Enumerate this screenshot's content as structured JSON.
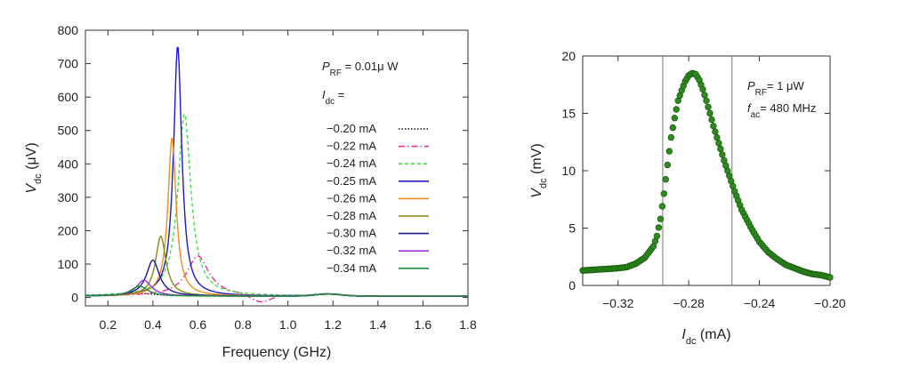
{
  "chart_data": [
    {
      "type": "line",
      "xlabel": "Frequency (GHz)",
      "ylabel_main": "V",
      "ylabel_sub": "dc",
      "ylabel_unit": " (μV)",
      "xlim": [
        0.1,
        1.8
      ],
      "ylim": [
        -25,
        800
      ],
      "xticks": [
        0.2,
        0.4,
        0.6,
        0.8,
        1.0,
        1.2,
        1.4,
        1.6,
        1.8
      ],
      "xtick_labels": [
        "0.2",
        "0.4",
        "0.6",
        "0.8",
        "1.0",
        "1.2",
        "1.4",
        "1.6",
        "1.8"
      ],
      "yticks": [
        0,
        100,
        200,
        300,
        400,
        500,
        600,
        700,
        800
      ],
      "ytick_labels": [
        "0",
        "100",
        "200",
        "300",
        "400",
        "500",
        "600",
        "700",
        "800"
      ],
      "annotation": {
        "main": "P",
        "sub": "RF",
        "rest": " = 0.01μ W"
      },
      "legend_title": {
        "main": "I",
        "sub": "dc",
        "rest": " ="
      },
      "legend_placement": "right",
      "series": [
        {
          "name": "−0.20 mA",
          "color": "#111111",
          "dash": "1.5,2",
          "x0": 0.35,
          "amp": 8,
          "w": 0.08,
          "neg": 0
        },
        {
          "name": "−0.22 mA",
          "color": "#e0358a",
          "dash": "7,3,1.5,3",
          "x0": 0.6,
          "amp": 120,
          "w": 0.06,
          "neg": -22
        },
        {
          "name": "−0.24 mA",
          "color": "#3fe03f",
          "dash": "4,3",
          "x0": 0.54,
          "amp": 545,
          "w": 0.035,
          "neg": 0
        },
        {
          "name": "−0.25 mA",
          "color": "#1c1ccc",
          "dash": "",
          "x0": 0.51,
          "amp": 750,
          "w": 0.022,
          "neg": 0
        },
        {
          "name": "−0.26 mA",
          "color": "#f28c1e",
          "dash": "",
          "x0": 0.485,
          "amp": 475,
          "w": 0.022,
          "neg": 0
        },
        {
          "name": "−0.28 mA",
          "color": "#8a8a14",
          "dash": "",
          "x0": 0.435,
          "amp": 180,
          "w": 0.028,
          "neg": 0
        },
        {
          "name": "−0.30 mA",
          "color": "#1b1b8c",
          "dash": "",
          "x0": 0.4,
          "amp": 108,
          "w": 0.035,
          "neg": 0
        },
        {
          "name": "−0.32 mA",
          "color": "#9b30e6",
          "dash": "",
          "x0": 0.36,
          "amp": 48,
          "w": 0.04,
          "neg": 0
        },
        {
          "name": "−0.34 mA",
          "color": "#1e8c3c",
          "dash": "",
          "x0": 0.34,
          "amp": 30,
          "w": 0.045,
          "neg": 0
        }
      ]
    },
    {
      "type": "scatter",
      "xlabel_main": "I",
      "xlabel_sub": "dc",
      "xlabel_unit": " (mA)",
      "ylabel_main": "V",
      "ylabel_sub": "dc",
      "ylabel_unit": " (mV)",
      "xlim": [
        -0.34,
        -0.2
      ],
      "ylim": [
        0,
        20
      ],
      "xticks": [
        -0.32,
        -0.28,
        -0.24,
        -0.2
      ],
      "xtick_labels": [
        "−0.32",
        "−0.28",
        "−0.24",
        "−0.20"
      ],
      "yticks": [
        0,
        5,
        10,
        15,
        20
      ],
      "ytick_labels": [
        "0",
        "5",
        "10",
        "15",
        "20"
      ],
      "vlines": [
        -0.2947,
        -0.2555
      ],
      "annotations": [
        {
          "main": "P",
          "sub": "RF",
          "rest": "= 1 μW"
        },
        {
          "main": "f",
          "sub": "ac",
          "rest": "= 480 MHz"
        }
      ],
      "marker_color": "#2e8b1e",
      "series": [
        {
          "name": "",
          "x": [
            -0.34,
            -0.335,
            -0.33,
            -0.325,
            -0.32,
            -0.315,
            -0.31,
            -0.305,
            -0.3,
            -0.298,
            -0.296,
            -0.294,
            -0.292,
            -0.29,
            -0.288,
            -0.286,
            -0.284,
            -0.282,
            -0.28,
            -0.278,
            -0.276,
            -0.274,
            -0.272,
            -0.27,
            -0.268,
            -0.266,
            -0.264,
            -0.262,
            -0.26,
            -0.258,
            -0.256,
            -0.254,
            -0.252,
            -0.25,
            -0.245,
            -0.24,
            -0.235,
            -0.23,
            -0.225,
            -0.22,
            -0.215,
            -0.21,
            -0.205,
            -0.2
          ],
          "y": [
            1.3,
            1.35,
            1.4,
            1.45,
            1.5,
            1.6,
            1.9,
            2.4,
            3.4,
            4.3,
            5.8,
            8.0,
            10.5,
            12.9,
            14.6,
            16.1,
            17.0,
            17.8,
            18.3,
            18.5,
            18.4,
            17.9,
            17.1,
            16.1,
            15.0,
            13.9,
            12.9,
            11.9,
            10.9,
            10.0,
            9.1,
            8.2,
            7.4,
            6.6,
            5.1,
            3.8,
            2.9,
            2.3,
            1.8,
            1.5,
            1.2,
            1.0,
            0.9,
            0.7
          ]
        }
      ]
    }
  ]
}
